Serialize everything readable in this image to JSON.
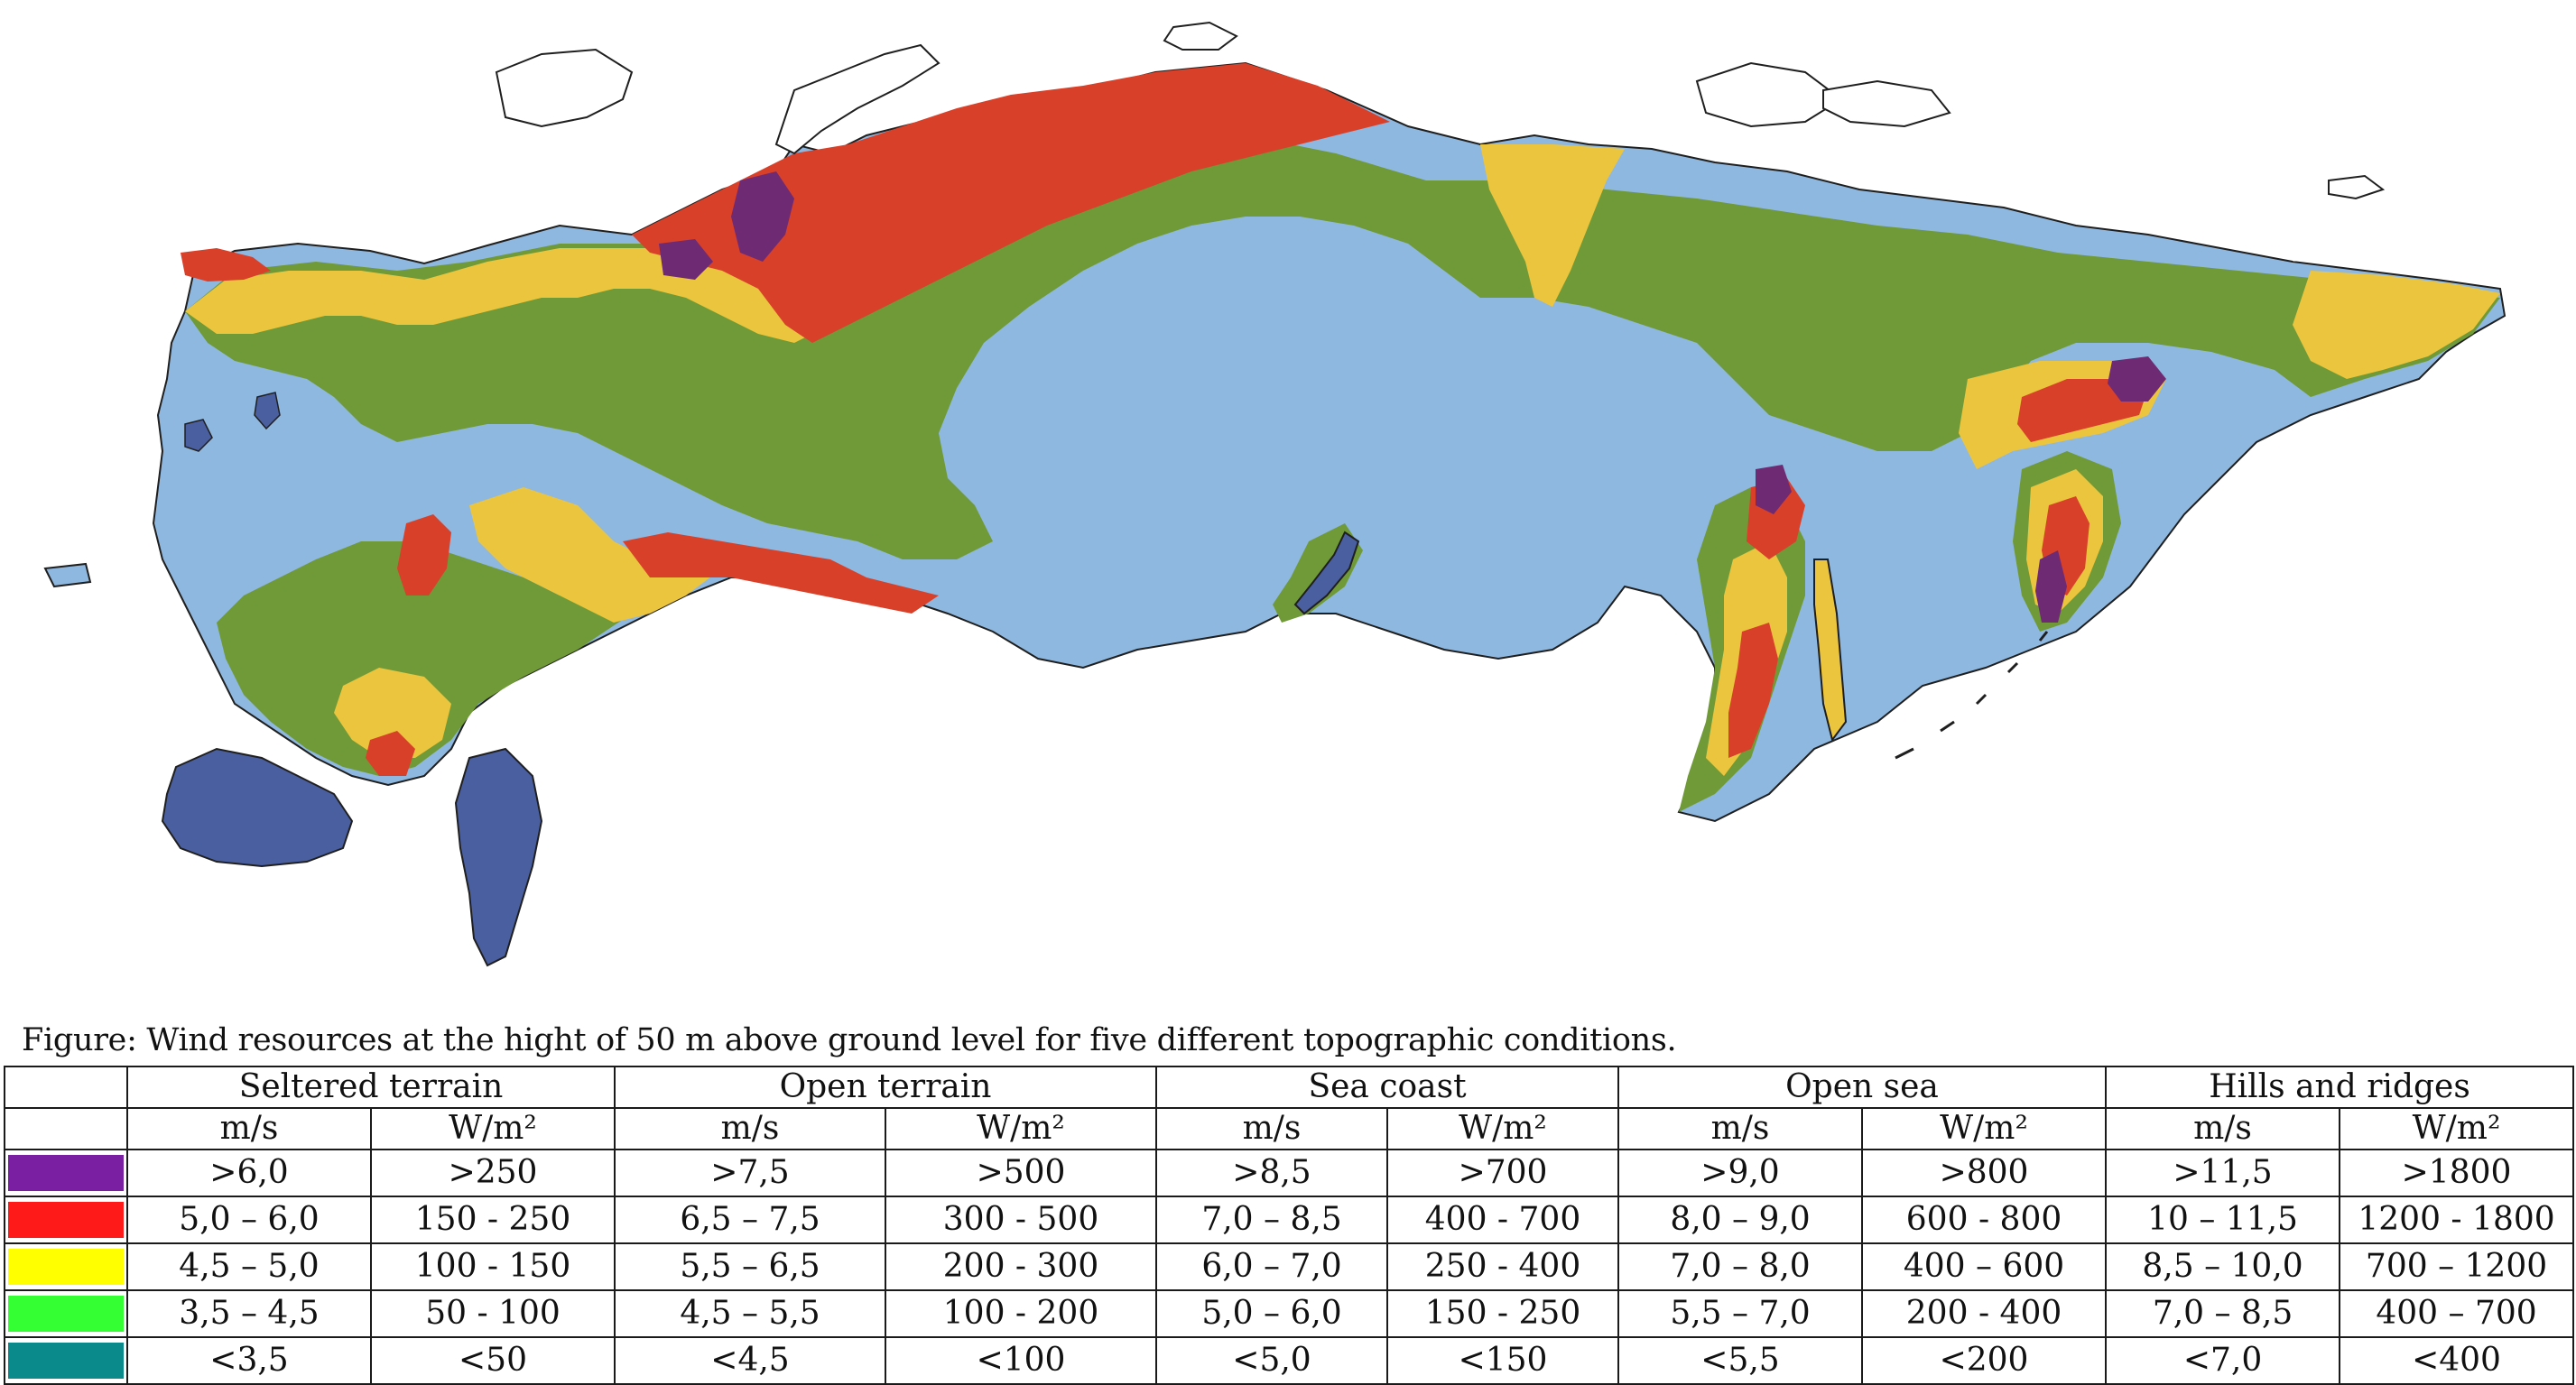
{
  "map": {
    "zone_colors": {
      "purple": "#6e2a73",
      "red": "#d8402a",
      "yellow": "#ecc53e",
      "green": "#6f9a37",
      "blue": "#8fb8e0",
      "water": "#4a5fa0",
      "outline": "#1f1f1f"
    }
  },
  "caption": "Figure:  Wind resources at the hight of 50 m above ground level for five different topographic conditions.",
  "legend": {
    "groups": [
      "Seltered terrain",
      "Open terrain",
      "Sea coast",
      "Open sea",
      "Hills and ridges"
    ],
    "units": [
      "m/s",
      "W/m²",
      "m/s",
      "W/m²",
      "m/s",
      "W/m²",
      "m/s",
      "W/m²",
      "m/s",
      "W/m²"
    ],
    "rows": [
      {
        "color": "#7b1fa2",
        "values": [
          ">6,0",
          ">250",
          ">7,5",
          ">500",
          ">8,5",
          ">700",
          ">9,0",
          ">800",
          ">11,5",
          ">1800"
        ]
      },
      {
        "color": "#ff1a1a",
        "values": [
          "5,0 – 6,0",
          "150 - 250",
          "6,5 – 7,5",
          "300 - 500",
          "7,0 – 8,5",
          "400 - 700",
          "8,0 – 9,0",
          "600 - 800",
          "10 – 11,5",
          "1200 - 1800"
        ]
      },
      {
        "color": "#ffff00",
        "values": [
          "4,5 – 5,0",
          "100 - 150",
          "5,5 – 6,5",
          "200 - 300",
          "6,0 – 7,0",
          "250 - 400",
          "7,0 – 8,0",
          "400 – 600",
          "8,5 – 10,0",
          "700 – 1200"
        ]
      },
      {
        "color": "#33ff33",
        "values": [
          "3,5 – 4,5",
          "50 - 100",
          "4,5 – 5,5",
          "100 - 200",
          "5,0 – 6,0",
          "150 - 250",
          "5,5 – 7,0",
          "200 - 400",
          "7,0 – 8,5",
          "400 – 700"
        ]
      },
      {
        "color": "#0a8a8a",
        "values": [
          "<3,5",
          "<50",
          "<4,5",
          "<100",
          "<5,0",
          "<150",
          "<5,5",
          "<200",
          "<7,0",
          "<400"
        ]
      }
    ]
  }
}
